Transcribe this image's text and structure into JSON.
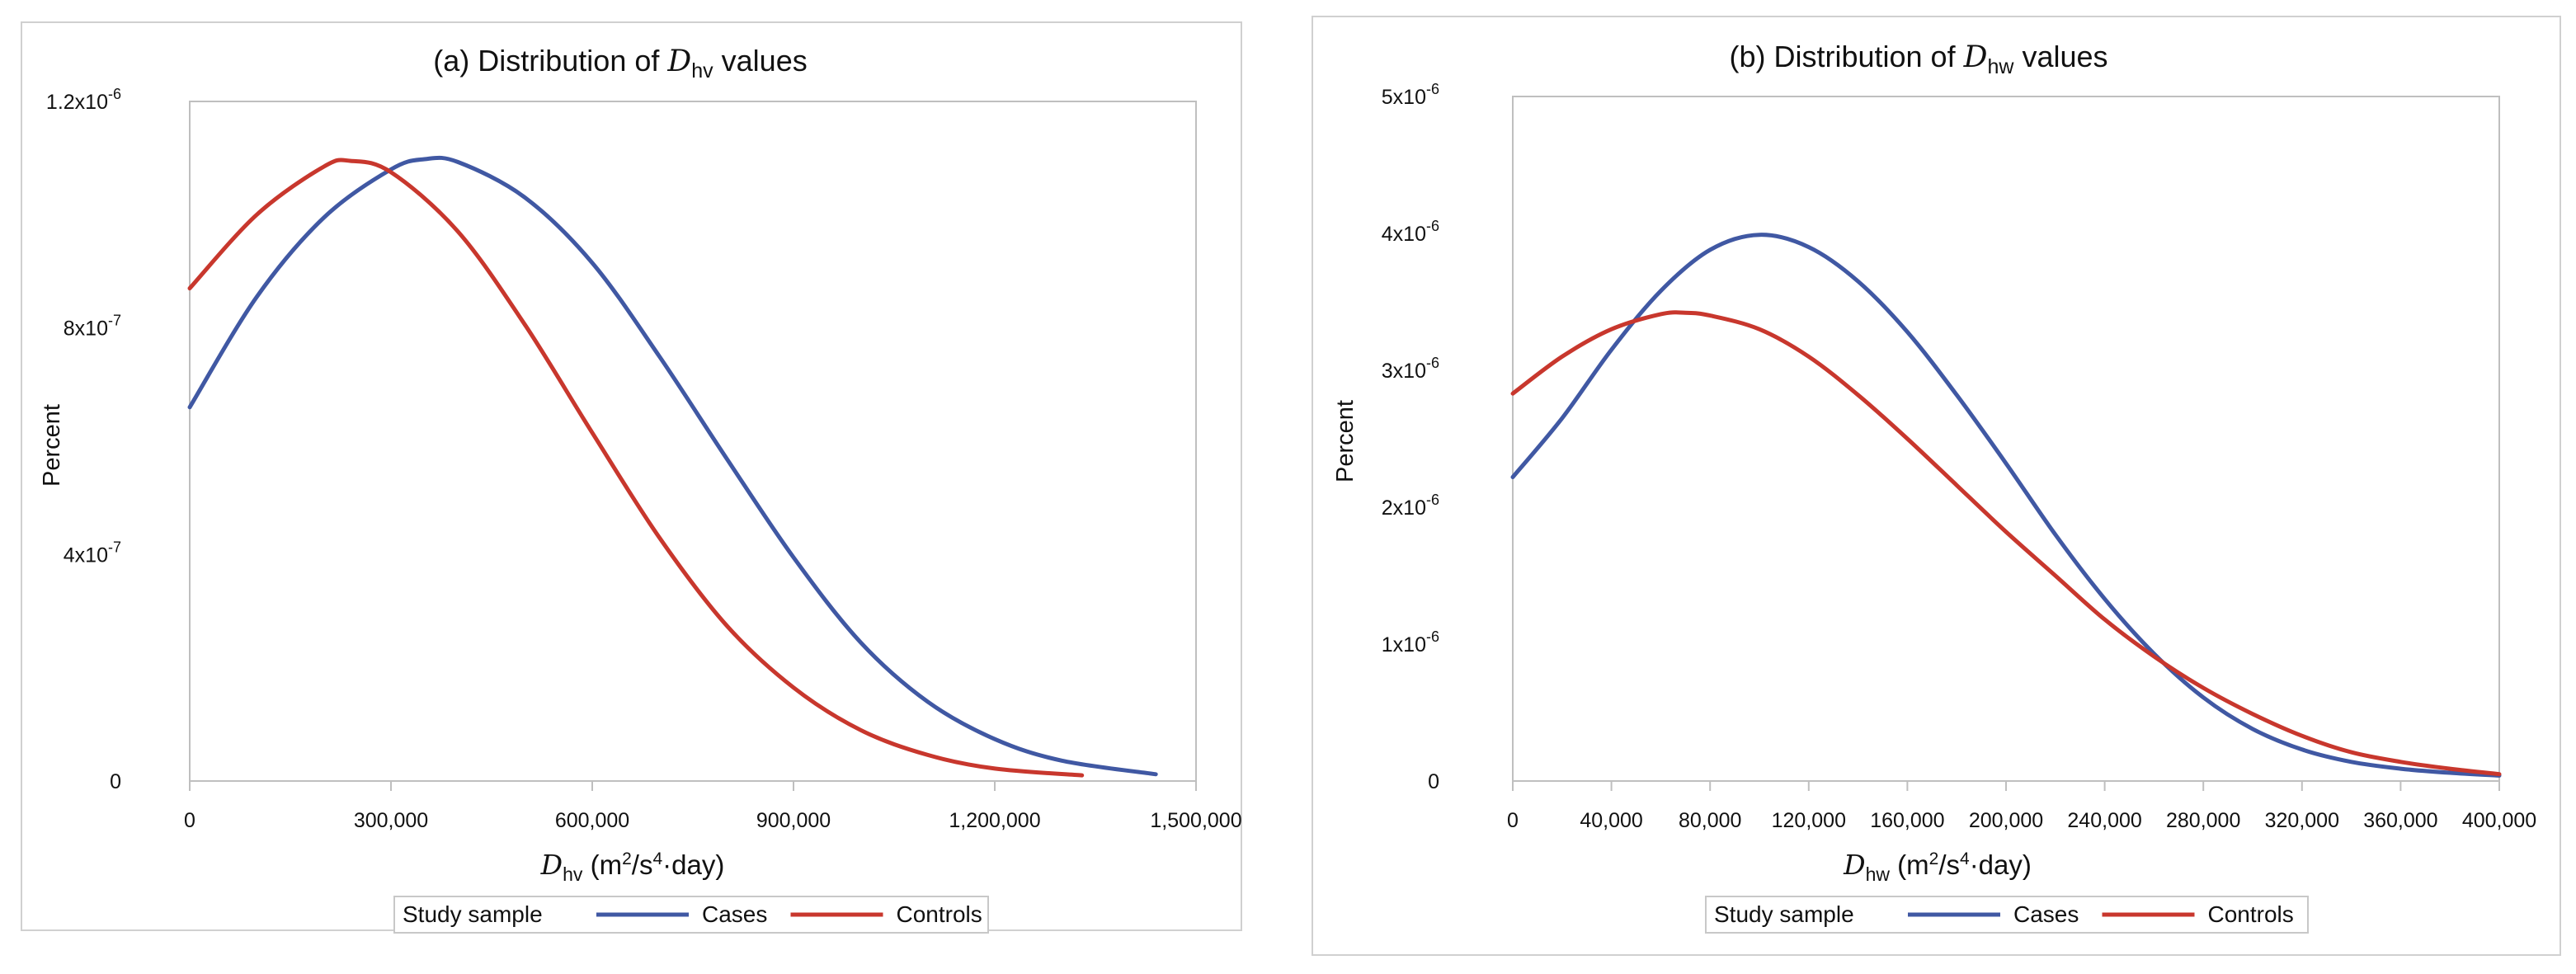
{
  "colors": {
    "cases": "#4058a3",
    "controls": "#c8372d"
  },
  "chart_data": [
    {
      "type": "line",
      "title": "(a) Distribution of D_hv values",
      "title_parts": {
        "prefix": "(a) Distribution of ",
        "var": "D",
        "sub": "hv",
        "suffix": " values"
      },
      "xlabel": "D_hv (m2/s4·day)",
      "xlabel_parts": {
        "var": "D",
        "sub": "hv",
        "unit_open": " (m",
        "sq": "2",
        "mid": "/s",
        "four": "4",
        "unit_close": "·day)"
      },
      "ylabel": "Percent",
      "xlim": [
        0,
        1500000
      ],
      "ylim": [
        0,
        1.2e-06
      ],
      "x_ticks": [
        {
          "value": 0,
          "label": "0"
        },
        {
          "value": 300000,
          "label": "300,000"
        },
        {
          "value": 600000,
          "label": "600,000"
        },
        {
          "value": 900000,
          "label": "900,000"
        },
        {
          "value": 1200000,
          "label": "1,200,000"
        },
        {
          "value": 1500000,
          "label": "1,500,000"
        }
      ],
      "y_ticks": [
        {
          "value": 0,
          "base": "0",
          "exp": ""
        },
        {
          "value": 4e-07,
          "base": "4x10",
          "exp": "-7"
        },
        {
          "value": 8e-07,
          "base": "8x10",
          "exp": "-7"
        },
        {
          "value": 1.2e-06,
          "base": "1.2x10",
          "exp": "-6"
        }
      ],
      "series": [
        {
          "name": "Cases",
          "color_key": "cases",
          "x": [
            0,
            100000,
            200000,
            300000,
            350000,
            400000,
            500000,
            600000,
            700000,
            800000,
            900000,
            1000000,
            1100000,
            1200000,
            1300000,
            1440000
          ],
          "y": [
            6.6e-07,
            8.55e-07,
            9.95e-07,
            1.08e-06,
            1.098e-06,
            1.093e-06,
            1.03e-06,
            9.15e-07,
            7.5e-07,
            5.7e-07,
            3.95e-07,
            2.45e-07,
            1.4e-07,
            7.4e-08,
            3.6e-08,
            1.2e-08
          ]
        },
        {
          "name": "Controls",
          "color_key": "controls",
          "x": [
            0,
            100000,
            200000,
            240000,
            300000,
            400000,
            500000,
            600000,
            700000,
            800000,
            900000,
            1000000,
            1100000,
            1200000,
            1330000
          ],
          "y": [
            8.7e-07,
            1e-06,
            1.085e-06,
            1.095e-06,
            1.075e-06,
            9.7e-07,
            8.05e-07,
            6.15e-07,
            4.3e-07,
            2.75e-07,
            1.65e-07,
            9e-08,
            4.6e-08,
            2.2e-08,
            1e-08
          ]
        }
      ],
      "legend": {
        "title": "Study sample",
        "position": "bottom",
        "entries": [
          "Cases",
          "Controls"
        ]
      }
    },
    {
      "type": "line",
      "title": "(b) Distribution of D_hw values",
      "title_parts": {
        "prefix": "(b) Distribution of ",
        "var": "D",
        "sub": "hw",
        "suffix": " values"
      },
      "xlabel": "D_hw (m2/s4·day)",
      "xlabel_parts": {
        "var": "D",
        "sub": "hw",
        "unit_open": " (m",
        "sq": "2",
        "mid": "/s",
        "four": "4",
        "unit_close": "·day)"
      },
      "ylabel": "Percent",
      "xlim": [
        0,
        400000
      ],
      "ylim": [
        0,
        5e-06
      ],
      "x_ticks": [
        {
          "value": 0,
          "label": "0"
        },
        {
          "value": 40000,
          "label": "40,000"
        },
        {
          "value": 80000,
          "label": "80,000"
        },
        {
          "value": 120000,
          "label": "120,000"
        },
        {
          "value": 160000,
          "label": "160,000"
        },
        {
          "value": 200000,
          "label": "200,000"
        },
        {
          "value": 240000,
          "label": "240,000"
        },
        {
          "value": 280000,
          "label": "280,000"
        },
        {
          "value": 320000,
          "label": "320,000"
        },
        {
          "value": 360000,
          "label": "360,000"
        },
        {
          "value": 400000,
          "label": "400,000"
        }
      ],
      "y_ticks": [
        {
          "value": 0,
          "base": "0",
          "exp": ""
        },
        {
          "value": 1e-06,
          "base": "1x10",
          "exp": "-6"
        },
        {
          "value": 2e-06,
          "base": "2x10",
          "exp": "-6"
        },
        {
          "value": 3e-06,
          "base": "3x10",
          "exp": "-6"
        },
        {
          "value": 4e-06,
          "base": "4x10",
          "exp": "-6"
        },
        {
          "value": 5e-06,
          "base": "5x10",
          "exp": "-6"
        }
      ],
      "series": [
        {
          "name": "Cases",
          "color_key": "cases",
          "x": [
            0,
            20000,
            40000,
            60000,
            80000,
            100000,
            120000,
            140000,
            160000,
            180000,
            200000,
            220000,
            240000,
            260000,
            280000,
            300000,
            320000,
            340000,
            360000,
            380000,
            400000
          ],
          "y": [
            2.22e-06,
            2.65e-06,
            3.15e-06,
            3.58e-06,
            3.88e-06,
            3.99e-06,
            3.9e-06,
            3.65e-06,
            3.28e-06,
            2.82e-06,
            2.32e-06,
            1.8e-06,
            1.33e-06,
            9.3e-07,
            6.1e-07,
            3.8e-07,
            2.3e-07,
            1.4e-07,
            9e-08,
            6e-08,
            4e-08
          ]
        },
        {
          "name": "Controls",
          "color_key": "controls",
          "x": [
            0,
            20000,
            40000,
            60000,
            70000,
            80000,
            100000,
            120000,
            140000,
            160000,
            180000,
            200000,
            220000,
            240000,
            260000,
            280000,
            300000,
            320000,
            340000,
            360000,
            380000,
            400000
          ],
          "y": [
            2.83e-06,
            3.1e-06,
            3.3e-06,
            3.41e-06,
            3.42e-06,
            3.4e-06,
            3.3e-06,
            3.1e-06,
            2.82e-06,
            2.5e-06,
            2.16e-06,
            1.82e-06,
            1.5e-06,
            1.18e-06,
            9.1e-07,
            6.8e-07,
            4.9e-07,
            3.3e-07,
            2.1e-07,
            1.4e-07,
            9e-08,
            5e-08
          ]
        }
      ],
      "legend": {
        "title": "Study sample",
        "position": "bottom",
        "entries": [
          "Cases",
          "Controls"
        ]
      }
    }
  ]
}
